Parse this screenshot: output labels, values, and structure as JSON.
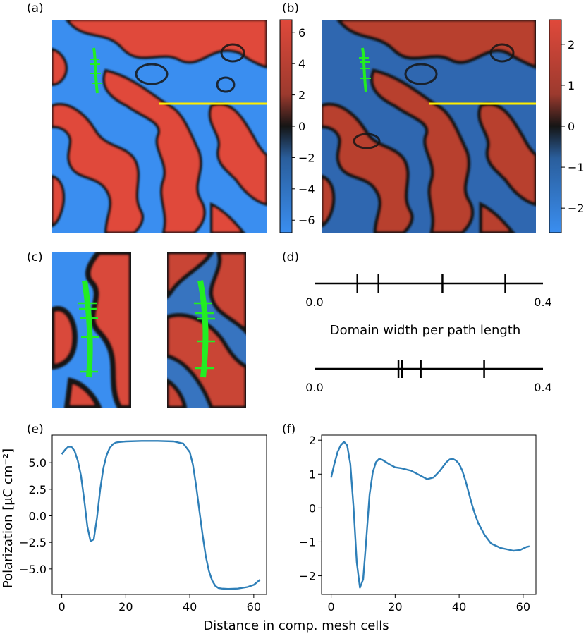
{
  "panels": {
    "a": "(a)",
    "b": "(b)",
    "c": "(c)",
    "d": "(d)",
    "e": "(e)",
    "f": "(f)"
  },
  "colors": {
    "positive": "#e0493b",
    "negative": "#3a8ef0",
    "wall": "#1a1a1a",
    "path": "#22ee22",
    "line": "#ffee00",
    "curve": "#2e7fb8"
  },
  "chart_data": [
    {
      "id": "a",
      "type": "heatmap",
      "colorbar": {
        "ticks": [
          "6",
          "4",
          "2",
          "0",
          "−2",
          "−4",
          "−6"
        ],
        "ylim": [
          -6.8,
          6.8
        ]
      }
    },
    {
      "id": "b",
      "type": "heatmap",
      "colorbar": {
        "ticks": [
          "2",
          "1",
          "0",
          "−1",
          "−2"
        ],
        "ylim": [
          -2.6,
          2.6
        ]
      }
    },
    {
      "id": "c",
      "type": "heatmap",
      "note_panels": 2
    },
    {
      "id": "d",
      "type": "scatter",
      "xlabel": "Domain width per path length",
      "xlim": [
        0.0,
        0.4
      ],
      "tick_labels": [
        "0.0",
        "0.4"
      ],
      "series": [
        {
          "values": [
            0.075,
            0.112,
            0.224,
            0.334
          ]
        },
        {
          "values": [
            0.147,
            0.153,
            0.186,
            0.297
          ]
        }
      ]
    },
    {
      "id": "e",
      "type": "line",
      "ylabel": "Polarization [μC cm⁻²]",
      "xlim": [
        -3,
        64
      ],
      "ylim": [
        -7.4,
        7.6
      ],
      "xticks": [
        "0",
        "20",
        "40",
        "60"
      ],
      "yticks": [
        "5.0",
        "2.5",
        "0.0",
        "−2.5",
        "−5.0"
      ],
      "x": [
        0,
        1,
        2,
        3,
        4,
        5,
        6,
        7,
        8,
        9,
        10,
        11,
        12,
        13,
        14,
        15,
        16,
        17,
        18,
        20,
        25,
        30,
        35,
        38,
        40,
        41,
        42,
        43,
        44,
        45,
        46,
        47,
        48,
        49,
        50,
        52,
        55,
        58,
        60,
        62
      ],
      "y": [
        5.8,
        6.2,
        6.5,
        6.5,
        6.1,
        5.2,
        3.8,
        1.5,
        -1.0,
        -2.4,
        -2.2,
        -0.2,
        2.5,
        4.5,
        5.7,
        6.4,
        6.75,
        6.9,
        6.95,
        7.0,
        7.05,
        7.05,
        7.0,
        6.8,
        6.0,
        4.8,
        2.8,
        0.5,
        -1.8,
        -3.8,
        -5.2,
        -6.1,
        -6.6,
        -6.8,
        -6.85,
        -6.88,
        -6.85,
        -6.7,
        -6.5,
        -6.0
      ]
    },
    {
      "id": "f",
      "type": "line",
      "xlim": [
        -3,
        64
      ],
      "ylim": [
        -2.55,
        2.15
      ],
      "xticks": [
        "0",
        "20",
        "40",
        "60"
      ],
      "yticks": [
        "2",
        "1",
        "0",
        "−1",
        "−2"
      ],
      "x": [
        0,
        1,
        2,
        3,
        4,
        5,
        6,
        7,
        8,
        9,
        10,
        11,
        12,
        13,
        14,
        15,
        16,
        18,
        20,
        22,
        25,
        28,
        30,
        32,
        34,
        36,
        37,
        38,
        39,
        40,
        41,
        42,
        43,
        44,
        45,
        46,
        48,
        50,
        53,
        55,
        57,
        59,
        61,
        62
      ],
      "y": [
        0.9,
        1.3,
        1.65,
        1.85,
        1.95,
        1.85,
        1.3,
        0.0,
        -1.6,
        -2.35,
        -2.1,
        -0.9,
        0.4,
        1.05,
        1.35,
        1.45,
        1.42,
        1.3,
        1.2,
        1.17,
        1.1,
        0.95,
        0.85,
        0.9,
        1.1,
        1.35,
        1.43,
        1.45,
        1.4,
        1.3,
        1.1,
        0.8,
        0.45,
        0.1,
        -0.2,
        -0.45,
        -0.8,
        -1.05,
        -1.18,
        -1.22,
        -1.26,
        -1.24,
        -1.15,
        -1.13
      ]
    }
  ],
  "shared": {
    "xlabel": "Distance in comp. mesh cells"
  }
}
